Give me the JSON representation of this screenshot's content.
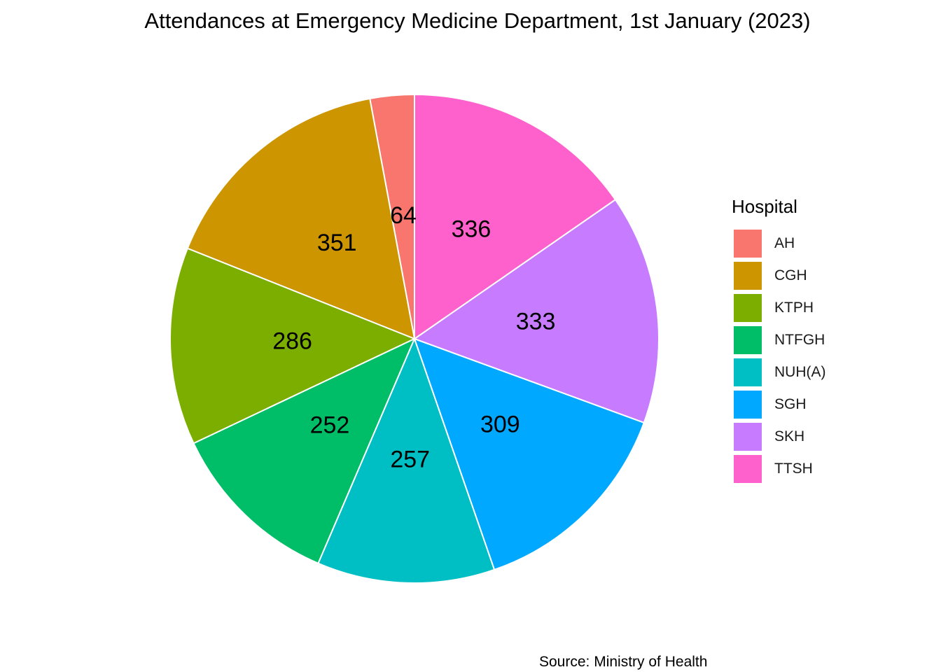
{
  "chart_data": {
    "type": "pie",
    "title": "Attendances at Emergency Medicine Department, 1st January (2023)",
    "caption": "Source: Ministry of Health",
    "legend_title": "Hospital",
    "legend_position": "right",
    "slices": [
      {
        "label": "AH",
        "value": 64,
        "color": "#F8766D"
      },
      {
        "label": "CGH",
        "value": 351,
        "color": "#CD9600"
      },
      {
        "label": "KTPH",
        "value": 286,
        "color": "#7CAE00"
      },
      {
        "label": "NTFGH",
        "value": 252,
        "color": "#00BE67"
      },
      {
        "label": "NUH(A)",
        "value": 257,
        "color": "#00BFC4"
      },
      {
        "label": "SGH",
        "value": 309,
        "color": "#00A9FF"
      },
      {
        "label": "SKH",
        "value": 333,
        "color": "#C77CFF"
      },
      {
        "label": "TTSH",
        "value": 336,
        "color": "#FF61CC"
      }
    ]
  }
}
